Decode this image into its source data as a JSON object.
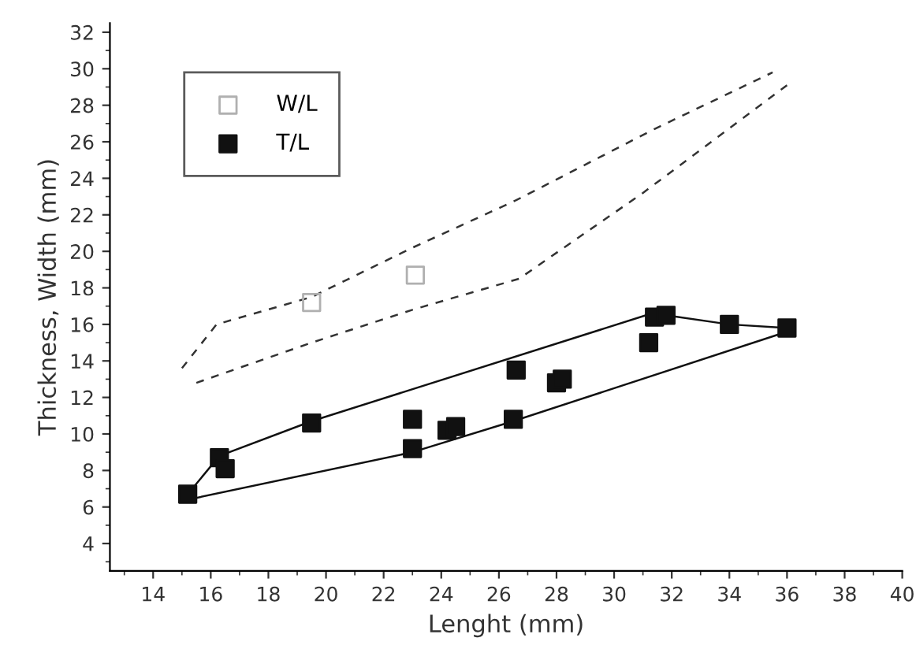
{
  "chart_data": {
    "type": "scatter",
    "xlabel": "Lenght (mm)",
    "ylabel": "Thickness, Width (mm)",
    "xlim": [
      12.5,
      40
    ],
    "xticks": [
      14,
      16,
      18,
      20,
      22,
      24,
      26,
      28,
      30,
      32,
      34,
      36,
      38,
      40
    ],
    "ylim": [
      2.5,
      32.5
    ],
    "yticks": [
      4,
      6,
      8,
      10,
      12,
      14,
      16,
      18,
      20,
      22,
      24,
      26,
      28,
      30,
      32
    ],
    "grid": false,
    "legend": "top left",
    "marker": "square",
    "series": [
      {
        "name": "W/L",
        "color": "#b0b0b0",
        "x": [
          19.5,
          23.1
        ],
        "values": [
          17.2,
          18.7
        ]
      },
      {
        "name": "T/L",
        "color": "#111111",
        "x": [
          15.2,
          16.3,
          16.5,
          19.5,
          23,
          23,
          24.2,
          24.5,
          26.5,
          26.6,
          28,
          28.2,
          31.2,
          31.4,
          31.8,
          34,
          36
        ],
        "values": [
          6.7,
          8.7,
          8.1,
          10.6,
          10.8,
          9.2,
          10.2,
          10.4,
          10.8,
          13.5,
          12.8,
          13.0,
          15.0,
          16.4,
          16.5,
          16.0,
          15.8
        ]
      },
      {
        "type": "line",
        "color": "#333333",
        "line_style": "dashed",
        "marker": "none",
        "x": [
          15,
          16.2,
          19.5,
          23,
          26.6,
          31.4,
          35.5
        ],
        "values": [
          13.6,
          16.0,
          17.5,
          20.2,
          22.8,
          26.7,
          29.8
        ]
      },
      {
        "type": "line",
        "color": "#333333",
        "line_style": "dashed",
        "marker": "none",
        "x": [
          15.5,
          19.5,
          23,
          26.7,
          31,
          36
        ],
        "values": [
          12.8,
          15.0,
          16.8,
          18.5,
          23.2,
          29.1
        ]
      },
      {
        "type": "line",
        "color": "#111111",
        "line_style": "solid",
        "marker": "none",
        "x": [
          15.2,
          16.3,
          19.5,
          31.3,
          31.8,
          34,
          36
        ],
        "values": [
          6.7,
          8.8,
          10.7,
          16.6,
          16.5,
          16.0,
          15.8
        ]
      },
      {
        "type": "line",
        "color": "#111111",
        "line_style": "solid",
        "marker": "none",
        "x": [
          15.2,
          23,
          26.5,
          36
        ],
        "values": [
          6.4,
          9.0,
          10.7,
          15.6
        ]
      }
    ]
  }
}
